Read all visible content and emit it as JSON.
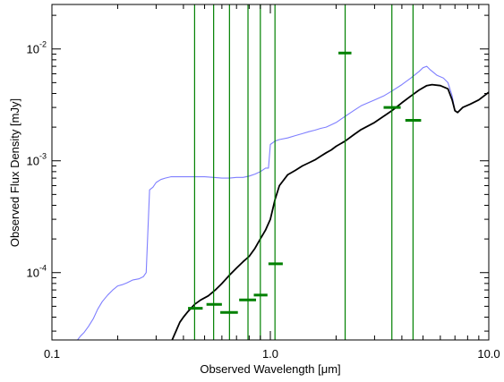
{
  "chart_data": {
    "type": "line",
    "xlabel": "Observed Wavelength [μm]",
    "ylabel": "Observed Flux Density [mJy]",
    "xscale": "log",
    "yscale": "log",
    "xlim": [
      0.1,
      10.0
    ],
    "ylim": [
      2.5e-05,
      0.025
    ],
    "grid": false,
    "x_tick_labels": [
      {
        "value": 0.1,
        "label": "0.1"
      },
      {
        "value": 1.0,
        "label": "1.0"
      },
      {
        "value": 10.0,
        "label": "10.0"
      }
    ],
    "y_tick_labels": [
      {
        "value": 0.0001,
        "mant": "10",
        "exp": "-4"
      },
      {
        "value": 0.001,
        "mant": "10",
        "exp": "-3"
      },
      {
        "value": 0.01,
        "mant": "10",
        "exp": "-2"
      }
    ],
    "colors": {
      "blue": "#7f7fff",
      "black": "#000000",
      "green": "#008000"
    },
    "series": [
      {
        "color": "blue",
        "points": [
          [
            0.131,
            2.5e-05
          ],
          [
            0.135,
            2.7e-05
          ],
          [
            0.14,
            2.9e-05
          ],
          [
            0.147,
            3.3e-05
          ],
          [
            0.155,
            3.9e-05
          ],
          [
            0.162,
            4.7e-05
          ],
          [
            0.17,
            5.5e-05
          ],
          [
            0.18,
            6.3e-05
          ],
          [
            0.19,
            7e-05
          ],
          [
            0.2,
            7.6e-05
          ],
          [
            0.21,
            7.8e-05
          ],
          [
            0.22,
            8.1e-05
          ],
          [
            0.235,
            8.6e-05
          ],
          [
            0.25,
            8.8e-05
          ],
          [
            0.262,
            9.2e-05
          ],
          [
            0.27,
            0.0001
          ],
          [
            0.28,
            0.00055
          ],
          [
            0.29,
            0.00058
          ],
          [
            0.3,
            0.00064
          ],
          [
            0.315,
            0.00068
          ],
          [
            0.33,
            0.0007
          ],
          [
            0.35,
            0.00072
          ],
          [
            0.37,
            0.00072
          ],
          [
            0.4,
            0.00072
          ],
          [
            0.43,
            0.00072
          ],
          [
            0.46,
            0.00072
          ],
          [
            0.5,
            0.00072
          ],
          [
            0.55,
            0.00071
          ],
          [
            0.6,
            0.0007
          ],
          [
            0.65,
            0.0007
          ],
          [
            0.7,
            0.00071
          ],
          [
            0.75,
            0.00071
          ],
          [
            0.8,
            0.00073
          ],
          [
            0.85,
            0.00076
          ],
          [
            0.9,
            0.0008
          ],
          [
            0.95,
            0.00086
          ],
          [
            0.98,
            0.00086
          ],
          [
            1.0,
            0.0014
          ],
          [
            1.05,
            0.0015
          ],
          [
            1.1,
            0.00155
          ],
          [
            1.2,
            0.0016
          ],
          [
            1.3,
            0.00168
          ],
          [
            1.4,
            0.00175
          ],
          [
            1.5,
            0.00182
          ],
          [
            1.6,
            0.00188
          ],
          [
            1.7,
            0.00195
          ],
          [
            1.8,
            0.002
          ],
          [
            1.9,
            0.0021
          ],
          [
            2.0,
            0.0022
          ],
          [
            2.2,
            0.0025
          ],
          [
            2.4,
            0.0028
          ],
          [
            2.6,
            0.0031
          ],
          [
            2.8,
            0.0033
          ],
          [
            3.0,
            0.0035
          ],
          [
            3.3,
            0.0038
          ],
          [
            3.6,
            0.0042
          ],
          [
            4.0,
            0.0048
          ],
          [
            4.4,
            0.0055
          ],
          [
            4.8,
            0.0063
          ],
          [
            5.0,
            0.0068
          ],
          [
            5.2,
            0.007
          ],
          [
            5.4,
            0.0065
          ],
          [
            5.8,
            0.0058
          ],
          [
            6.2,
            0.0055
          ],
          [
            6.5,
            0.005
          ],
          [
            6.8,
            0.0038
          ],
          [
            7.0,
            0.0028
          ],
          [
            7.2,
            0.0027
          ],
          [
            7.6,
            0.003
          ],
          [
            8.2,
            0.0032
          ],
          [
            9.0,
            0.0035
          ],
          [
            10.0,
            0.0041
          ]
        ]
      },
      {
        "color": "black",
        "points": [
          [
            0.355,
            2.5e-05
          ],
          [
            0.37,
            3e-05
          ],
          [
            0.385,
            3.6e-05
          ],
          [
            0.4,
            4e-05
          ],
          [
            0.42,
            4.5e-05
          ],
          [
            0.45,
            5.2e-05
          ],
          [
            0.48,
            5.7e-05
          ],
          [
            0.52,
            6.2e-05
          ],
          [
            0.56,
            7e-05
          ],
          [
            0.6,
            8e-05
          ],
          [
            0.65,
            9.5e-05
          ],
          [
            0.7,
            0.00011
          ],
          [
            0.75,
            0.000125
          ],
          [
            0.8,
            0.00014
          ],
          [
            0.85,
            0.000165
          ],
          [
            0.9,
            0.0002
          ],
          [
            0.95,
            0.00024
          ],
          [
            1.0,
            0.0003
          ],
          [
            1.05,
            0.00045
          ],
          [
            1.1,
            0.0006
          ],
          [
            1.2,
            0.00075
          ],
          [
            1.3,
            0.00082
          ],
          [
            1.4,
            0.0009
          ],
          [
            1.5,
            0.00096
          ],
          [
            1.6,
            0.00102
          ],
          [
            1.7,
            0.0011
          ],
          [
            1.8,
            0.00118
          ],
          [
            1.9,
            0.00125
          ],
          [
            2.0,
            0.00135
          ],
          [
            2.2,
            0.0015
          ],
          [
            2.4,
            0.0017
          ],
          [
            2.6,
            0.0019
          ],
          [
            2.8,
            0.00205
          ],
          [
            3.0,
            0.0022
          ],
          [
            3.3,
            0.0025
          ],
          [
            3.6,
            0.0028
          ],
          [
            4.0,
            0.0033
          ],
          [
            4.4,
            0.0038
          ],
          [
            4.8,
            0.0043
          ],
          [
            5.2,
            0.0047
          ],
          [
            5.5,
            0.0048
          ],
          [
            6.0,
            0.0047
          ],
          [
            6.5,
            0.0044
          ],
          [
            6.8,
            0.0035
          ],
          [
            7.0,
            0.0028
          ],
          [
            7.2,
            0.0027
          ],
          [
            7.6,
            0.003
          ],
          [
            8.2,
            0.0032
          ],
          [
            9.0,
            0.0035
          ],
          [
            10.0,
            0.0041
          ]
        ]
      }
    ],
    "vertical_lines_x": [
      0.45,
      0.55,
      0.65,
      0.79,
      0.9,
      1.05,
      2.2,
      3.6,
      4.5
    ],
    "photometry_points": [
      {
        "x": 0.45,
        "y": 4.8e-05,
        "x_lo": 0.42,
        "x_hi": 0.49
      },
      {
        "x": 0.55,
        "y": 5.2e-05,
        "x_lo": 0.51,
        "x_hi": 0.6
      },
      {
        "x": 0.65,
        "y": 4.4e-05,
        "x_lo": 0.59,
        "x_hi": 0.71
      },
      {
        "x": 0.79,
        "y": 5.7e-05,
        "x_lo": 0.72,
        "x_hi": 0.86
      },
      {
        "x": 0.9,
        "y": 6.3e-05,
        "x_lo": 0.84,
        "x_hi": 0.97
      },
      {
        "x": 1.05,
        "y": 0.00012,
        "x_lo": 0.98,
        "x_hi": 1.14
      },
      {
        "x": 2.2,
        "y": 0.0092,
        "x_lo": 2.05,
        "x_hi": 2.35
      },
      {
        "x": 3.6,
        "y": 0.003,
        "x_lo": 3.3,
        "x_hi": 3.95
      },
      {
        "x": 4.5,
        "y": 0.0023,
        "x_lo": 4.15,
        "x_hi": 4.9
      }
    ]
  }
}
